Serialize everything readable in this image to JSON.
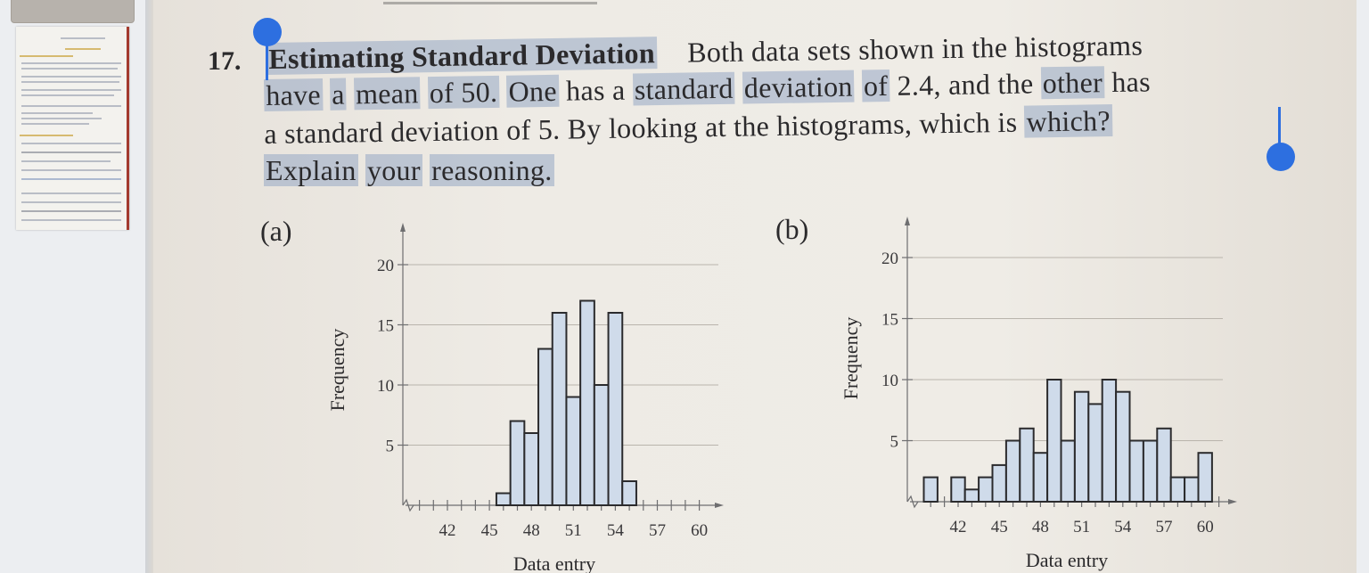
{
  "problem": {
    "number": "17.",
    "title": "Estimating Standard Deviation",
    "line1_rest": "Both data sets shown in the histograms",
    "line2": {
      "have": "have",
      "a": "a",
      "mean": "mean",
      "of_50": "of 50.",
      "one": "One",
      "has": "has a",
      "standard": "standard",
      "deviation": "deviation",
      "of": "of",
      "rest": "2.4, and the",
      "other": "other",
      "has_end": "has"
    },
    "line3_main": "a standard deviation of 5. By looking at the histograms, which is",
    "line3_end": "which?",
    "line4": {
      "explain": "Explain",
      "your": "your",
      "reasoning": "reasoning."
    }
  },
  "colors": {
    "highlight": "#96a8c4",
    "handle": "#2d6fe0",
    "bar_fill": "#cfdbea"
  },
  "chart_data": [
    {
      "type": "bar",
      "panel_label": "(a)",
      "xlabel": "Data entry",
      "ylabel": "Frequency",
      "x_ticks": [
        "42",
        "45",
        "48",
        "51",
        "54",
        "57",
        "60"
      ],
      "y_ticks": [
        "5",
        "10",
        "15",
        "20"
      ],
      "ylim": [
        0,
        20
      ],
      "x": [
        46,
        47,
        48,
        49,
        50,
        51,
        52,
        53,
        54,
        55
      ],
      "values": [
        1,
        7,
        6,
        13,
        16,
        9,
        17,
        10,
        16,
        2
      ]
    },
    {
      "type": "bar",
      "panel_label": "(b)",
      "xlabel": "Data entry",
      "ylabel": "Frequency",
      "x_ticks": [
        "42",
        "45",
        "48",
        "51",
        "54",
        "57",
        "60"
      ],
      "y_ticks": [
        "5",
        "10",
        "15",
        "20"
      ],
      "ylim": [
        0,
        20
      ],
      "x": [
        40,
        42,
        43,
        44,
        45,
        46,
        47,
        48,
        49,
        50,
        51,
        52,
        53,
        54,
        55,
        56,
        57,
        58,
        59,
        60
      ],
      "values": [
        2,
        2,
        1,
        2,
        3,
        5,
        6,
        4,
        10,
        5,
        9,
        8,
        10,
        9,
        5,
        5,
        6,
        2,
        2,
        4
      ]
    }
  ]
}
